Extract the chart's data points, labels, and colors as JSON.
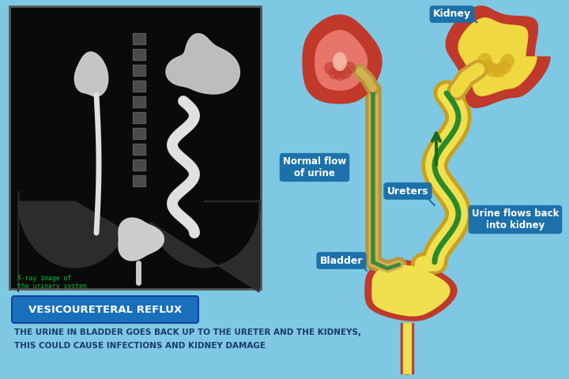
{
  "bg_color": "#7ec8e3",
  "title_box_color": "#1a6fba",
  "title_text": "VESICOURETERAL REFLUX",
  "title_text_color": "#ffffff",
  "subtitle_line1": "THE URINE IN BLADDER GOES BACK UP TO THE URETER AND THE KIDNEYS,",
  "subtitle_line2": "THIS COULD CAUSE INFECTIONS AND KIDNEY DAMAGE",
  "subtitle_text_color": "#1a3a6e",
  "label_box_color": "#1a6ea8",
  "label_text_color": "#ffffff",
  "xray_bg": "#0a0a0a",
  "labels": {
    "kidney": "Kidney",
    "normal_flow": "Normal flow\nof urine",
    "ureters": "Ureters",
    "bladder": "Bladder",
    "urine_back": "Urine flows back\ninto kidney"
  },
  "xray_label": "X-ray image of\nthe urinary system"
}
